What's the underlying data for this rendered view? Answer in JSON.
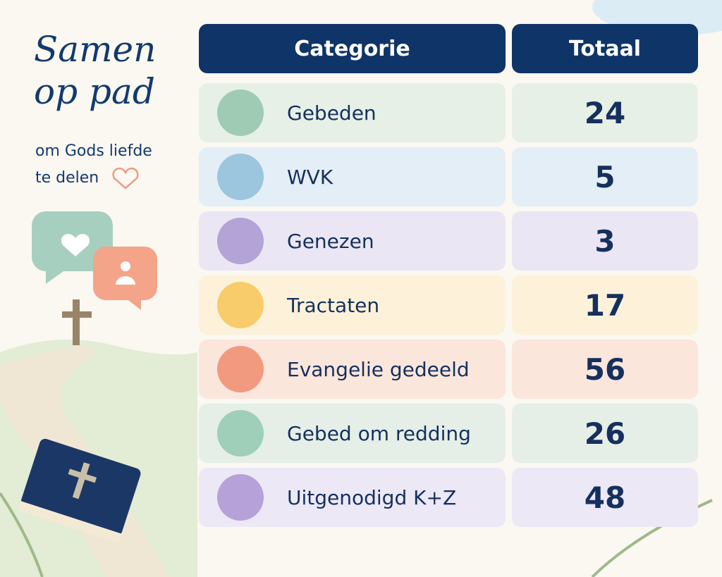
{
  "header": {
    "title_lines": [
      "Samen",
      "op pad"
    ],
    "subtitle_lines": [
      "om Gods liefde",
      "te delen"
    ]
  },
  "table": {
    "columns": [
      "Categorie",
      "Totaal"
    ],
    "rows": [
      [
        "Gebeden",
        24
      ],
      [
        "WVK",
        5
      ],
      [
        "Genezen",
        3
      ],
      [
        "Tractaten",
        17
      ],
      [
        "Evangelie gedeeld",
        56
      ],
      [
        "Gebed om redding",
        26
      ],
      [
        "Uitgenodigd K+Z",
        48
      ]
    ]
  }
}
